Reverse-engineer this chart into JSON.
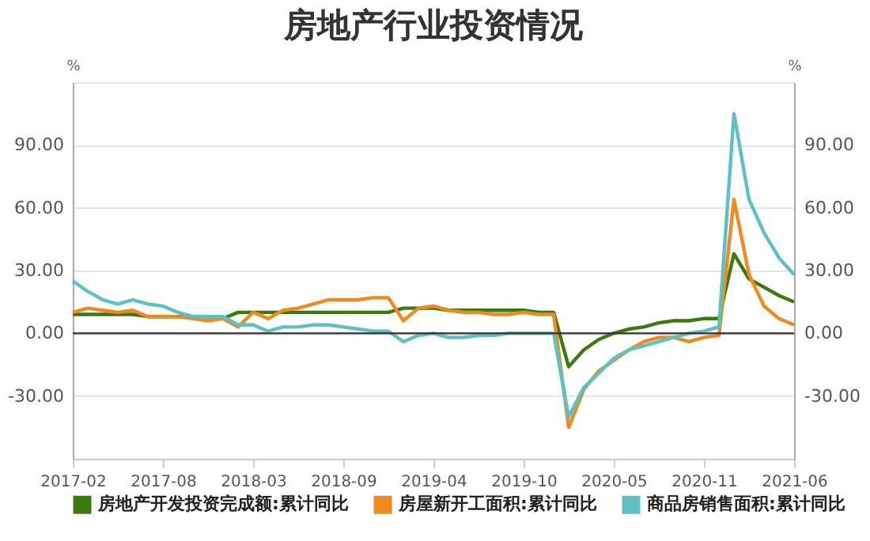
{
  "chart_data": {
    "type": "line",
    "title": "房地产行业投资情况",
    "ylabel": "%",
    "y2label": "%",
    "categories": [
      "2017-02",
      null,
      null,
      null,
      null,
      null,
      "2017-08",
      null,
      null,
      null,
      null,
      null,
      "2018-03",
      null,
      null,
      null,
      null,
      null,
      "2018-09",
      null,
      null,
      null,
      null,
      null,
      "2019-04",
      null,
      null,
      null,
      null,
      null,
      "2019-10",
      null,
      null,
      null,
      null,
      null,
      "2020-05",
      null,
      null,
      null,
      null,
      null,
      "2020-11",
      null,
      null,
      null,
      null,
      null,
      "2021-06"
    ],
    "series": [
      {
        "name": "房地产开发投资完成额:累计同比",
        "color": "#3b7a0e",
        "values": [
          9,
          9,
          9,
          9,
          9,
          8,
          8,
          8,
          8,
          8,
          7,
          10,
          10,
          10,
          10,
          10,
          10,
          10,
          10,
          10,
          10,
          10,
          12,
          12,
          12,
          11,
          11,
          11,
          11,
          11,
          11,
          10,
          10,
          -16,
          -8,
          -3,
          0,
          2,
          3,
          5,
          6,
          6,
          7,
          7,
          38,
          26,
          22,
          18,
          15
        ]
      },
      {
        "name": "房屋新开工面积:累计同比",
        "color": "#f08a1e",
        "values": [
          10,
          12,
          11,
          10,
          11,
          8,
          8,
          8,
          7,
          6,
          7,
          3,
          10,
          7,
          11,
          12,
          14,
          16,
          16,
          16,
          17,
          17,
          6,
          12,
          13,
          11,
          10,
          10,
          9,
          9,
          10,
          9,
          9,
          -45,
          -27,
          -18,
          -13,
          -8,
          -4,
          -2,
          -2,
          -4,
          -2,
          -1,
          64,
          28,
          13,
          7,
          4
        ]
      },
      {
        "name": "商品房销售面积:累计同比",
        "color": "#5cc0c5",
        "values": [
          25,
          20,
          16,
          14,
          16,
          14,
          13,
          10,
          8,
          8,
          8,
          4,
          4,
          1,
          3,
          3,
          4,
          4,
          3,
          2,
          1,
          1,
          -4,
          -1,
          0,
          -2,
          -2,
          -1,
          -1,
          0,
          0,
          0,
          0,
          -40,
          -26,
          -19,
          -12,
          -8,
          -6,
          -4,
          -2,
          0,
          1,
          3,
          105,
          64,
          48,
          36,
          28
        ]
      }
    ],
    "ylim": [
      -60,
      120
    ],
    "yticks": [
      {
        "value": -30,
        "label": "-30.00"
      },
      {
        "value": 0,
        "label": "0.00"
      },
      {
        "value": 30,
        "label": "30.00"
      },
      {
        "value": 60,
        "label": "60.00"
      },
      {
        "value": 90,
        "label": "90.00"
      },
      {
        "value": 120,
        "label": null
      }
    ],
    "y2lim": [
      -60,
      120
    ],
    "y2ticks": [
      {
        "value": -30,
        "label": "-30.00"
      },
      {
        "value": 0,
        "label": "0.00"
      },
      {
        "value": 30,
        "label": "30.00"
      },
      {
        "value": 60,
        "label": "60.00"
      },
      {
        "value": 90,
        "label": "90.00"
      },
      {
        "value": 120,
        "label": null
      }
    ],
    "ref_lines": [
      {
        "axis": "y",
        "value": 0,
        "color": "#333333"
      }
    ],
    "grid": "y",
    "legend": "bottom",
    "marker": "none",
    "line_style": "solid"
  }
}
